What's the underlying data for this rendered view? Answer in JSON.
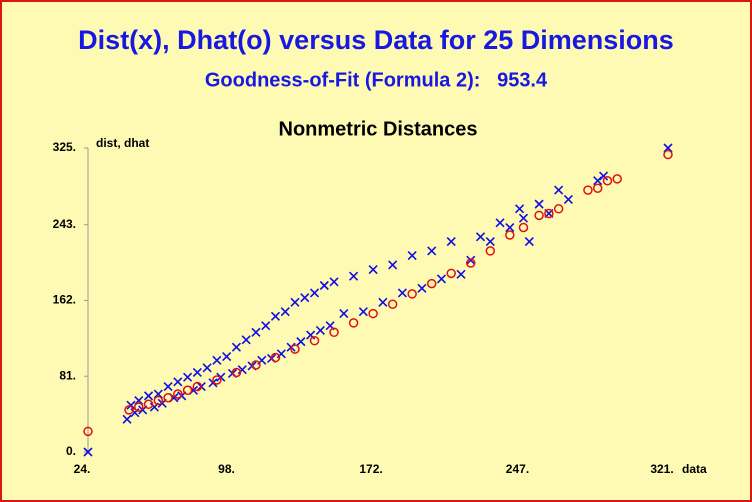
{
  "chart_data": {
    "type": "scatter",
    "title": "Dist(x), Dhat(o) versus Data for 25 Dimensions",
    "subtitle": "Goodness-of-Fit (Formula 2):   953.4",
    "plot_title": "Nonmetric Distances",
    "x_label": "data",
    "y_label": "dist, dhat",
    "xlim": [
      24,
      321
    ],
    "ylim": [
      0,
      325
    ],
    "xticks": [
      {
        "value": 24,
        "label": "24."
      },
      {
        "value": 98,
        "label": "98."
      },
      {
        "value": 172,
        "label": "172."
      },
      {
        "value": 247,
        "label": "247."
      },
      {
        "value": 321,
        "label": "321."
      }
    ],
    "yticks": [
      {
        "value": 0,
        "label": "0."
      },
      {
        "value": 81,
        "label": "81."
      },
      {
        "value": 162,
        "label": "162."
      },
      {
        "value": 243,
        "label": "243."
      },
      {
        "value": 325,
        "label": "325."
      }
    ],
    "series": [
      {
        "color": "#1010e0",
        "marker": "x",
        "x": [
          24,
          44,
          46,
          48,
          50,
          52,
          55,
          58,
          60,
          62,
          65,
          68,
          70,
          72,
          75,
          78,
          80,
          82,
          85,
          88,
          90,
          92,
          95,
          98,
          100,
          103,
          105,
          108,
          110,
          113,
          115,
          118,
          120,
          123,
          125,
          128,
          130,
          133,
          135,
          138,
          140,
          143,
          145,
          148,
          150,
          155,
          160,
          165,
          170,
          175,
          180,
          185,
          190,
          195,
          200,
          205,
          210,
          215,
          220,
          225,
          230,
          235,
          240,
          245,
          247,
          250,
          255,
          260,
          265,
          270,
          285,
          288,
          321
        ],
        "values": [
          0,
          35,
          50,
          42,
          55,
          45,
          60,
          48,
          62,
          52,
          70,
          58,
          75,
          60,
          80,
          66,
          85,
          70,
          90,
          74,
          98,
          80,
          102,
          84,
          112,
          88,
          120,
          92,
          128,
          98,
          135,
          100,
          145,
          105,
          150,
          112,
          160,
          118,
          165,
          125,
          170,
          130,
          178,
          135,
          182,
          148,
          188,
          150,
          195,
          160,
          200,
          170,
          210,
          175,
          215,
          185,
          225,
          190,
          205,
          230,
          225,
          245,
          240,
          260,
          250,
          225,
          265,
          255,
          280,
          270,
          290,
          295,
          325
        ]
      },
      {
        "color": "#e01010",
        "marker": "o",
        "x": [
          24,
          45,
          50,
          55,
          60,
          65,
          70,
          75,
          80,
          90,
          100,
          110,
          120,
          130,
          140,
          150,
          160,
          170,
          180,
          190,
          200,
          210,
          220,
          230,
          240,
          247,
          255,
          260,
          265,
          280,
          285,
          290,
          295,
          321
        ],
        "values": [
          22,
          45,
          48,
          51,
          55,
          58,
          62,
          66,
          70,
          77,
          85,
          93,
          101,
          110,
          119,
          128,
          138,
          148,
          158,
          169,
          180,
          191,
          202,
          215,
          232,
          240,
          253,
          255,
          260,
          280,
          282,
          290,
          292,
          318
        ]
      }
    ]
  }
}
